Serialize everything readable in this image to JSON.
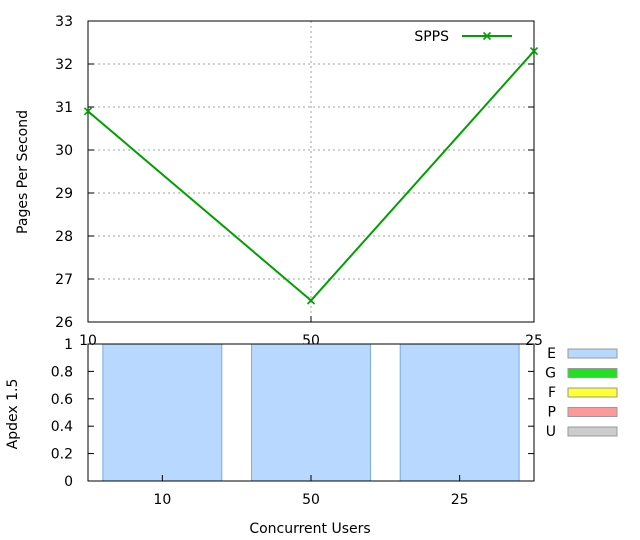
{
  "chart_data": [
    {
      "type": "line",
      "ylabel": "Pages Per Second",
      "x": [
        "10",
        "50",
        "25"
      ],
      "xtick_labels": [
        "10",
        "50",
        "25"
      ],
      "ylim": [
        26,
        33
      ],
      "yticks": [
        26,
        27,
        28,
        29,
        30,
        31,
        32,
        33
      ],
      "series": [
        {
          "name": "SPPS",
          "values": [
            30.9,
            26.5,
            32.3
          ],
          "color": "#00a000",
          "marker": "x"
        }
      ],
      "grid": true,
      "legend": "top-right"
    },
    {
      "type": "bar",
      "stacked": true,
      "xlabel": "Concurrent Users",
      "ylabel": "Apdex 1.5",
      "categories": [
        "10",
        "50",
        "25"
      ],
      "ylim": [
        0,
        1
      ],
      "yticks": [
        "0",
        "0.2",
        "0.4",
        "0.6",
        "0.8",
        "1"
      ],
      "series": [
        {
          "name": "E",
          "values": [
            1,
            1,
            1
          ],
          "color": "#b8d8ff"
        },
        {
          "name": "G",
          "values": [
            0,
            0,
            0
          ],
          "color": "#22e022"
        },
        {
          "name": "F",
          "values": [
            0,
            0,
            0
          ],
          "color": "#ffff33"
        },
        {
          "name": "P",
          "values": [
            0,
            0,
            0
          ],
          "color": "#ff9999"
        },
        {
          "name": "U",
          "values": [
            0,
            0,
            0
          ],
          "color": "#cccccc"
        }
      ],
      "legend": "right"
    }
  ]
}
